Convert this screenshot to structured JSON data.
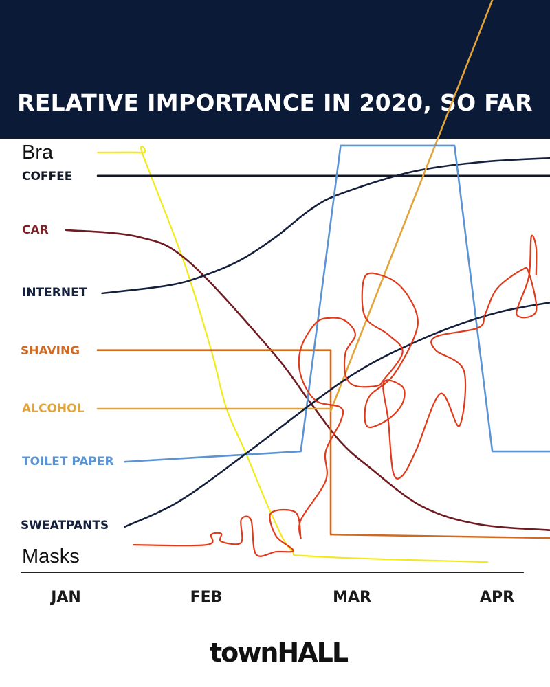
{
  "chart_data": {
    "type": "line",
    "title": "RELATIVE IMPORTANCE IN 2020, SO FAR",
    "xlabel": "",
    "ylabel": "",
    "x_ticks": [
      "JAN",
      "FEB",
      "MAR",
      "APR"
    ],
    "x_tick_dates": [
      "2020-01-01",
      "2020-02-01",
      "2020-03-01",
      "2020-04-01"
    ],
    "ylim": [
      0,
      100
    ],
    "grid": false,
    "legend": "inline labels at left",
    "series": [
      {
        "name": "Bra",
        "color": "#f2ea1a",
        "interp": "curve",
        "points": [
          [
            "2020-01-08",
            97.3
          ],
          [
            "2020-01-18",
            97.3
          ],
          [
            "2020-01-18",
            96.7
          ],
          [
            "2020-01-27",
            72.1
          ],
          [
            "2020-02-02",
            51.4
          ],
          [
            "2020-02-05",
            38.1
          ],
          [
            "2020-02-09",
            27.4
          ],
          [
            "2020-02-14",
            13.6
          ],
          [
            "2020-02-18",
            5.1
          ],
          [
            "2020-02-23",
            3.5
          ],
          [
            "2020-03-30",
            2.2
          ]
        ]
      },
      {
        "name": "COFFEE",
        "color": "#111827",
        "interp": "linear",
        "points": [
          [
            "2020-01-08",
            91.9
          ],
          [
            "2020-04-12",
            91.9
          ]
        ]
      },
      {
        "name": "CAR",
        "color": "#6e1c22",
        "interp": "curve",
        "points": [
          [
            "2020-01-01",
            79.3
          ],
          [
            "2020-01-17",
            77.7
          ],
          [
            "2020-01-28",
            72.1
          ],
          [
            "2020-02-14",
            51.4
          ],
          [
            "2020-02-22",
            39.1
          ],
          [
            "2020-02-28",
            30.1
          ],
          [
            "2020-03-05",
            24.2
          ],
          [
            "2020-03-16",
            15.2
          ],
          [
            "2020-03-28",
            11.0
          ],
          [
            "2020-04-12",
            9.6
          ]
        ]
      },
      {
        "name": "INTERNET",
        "color": "#14203c",
        "interp": "curve",
        "points": [
          [
            "2020-01-09",
            64.6
          ],
          [
            "2020-01-24",
            66.5
          ],
          [
            "2020-02-01",
            68.9
          ],
          [
            "2020-02-08",
            72.4
          ],
          [
            "2020-02-15",
            77.7
          ],
          [
            "2020-02-22",
            84.1
          ],
          [
            "2020-02-28",
            87.7
          ],
          [
            "2020-03-14",
            92.8
          ],
          [
            "2020-03-29",
            95.1
          ],
          [
            "2020-04-12",
            96.0
          ]
        ]
      },
      {
        "name": "SHAVING",
        "color": "#cf6a22",
        "interp": "linear",
        "points": [
          [
            "2020-01-08",
            51.4
          ],
          [
            "2020-02-26",
            51.4
          ],
          [
            "2020-02-26",
            8.6
          ],
          [
            "2020-04-12",
            7.8
          ]
        ]
      },
      {
        "name": "ALCOHOL",
        "color": "#e2a43a",
        "interp": "linear",
        "points": [
          [
            "2020-01-08",
            37.8
          ],
          [
            "2020-02-26",
            37.8
          ],
          [
            "2020-02-26",
            37.3
          ],
          [
            "2020-03-31",
            132.7
          ]
        ]
      },
      {
        "name": "TOILET PAPER",
        "color": "#5b93d3",
        "interp": "linear",
        "points": [
          [
            "2020-01-14",
            25.5
          ],
          [
            "2020-02-20",
            27.9
          ],
          [
            "2020-02-28",
            98.9
          ],
          [
            "2020-03-23",
            98.9
          ],
          [
            "2020-03-31",
            27.9
          ],
          [
            "2020-04-12",
            27.9
          ]
        ]
      },
      {
        "name": "SWEATPANTS",
        "color": "#14203c",
        "interp": "curve",
        "points": [
          [
            "2020-01-14",
            10.4
          ],
          [
            "2020-01-26",
            16.3
          ],
          [
            "2020-02-09",
            27.4
          ],
          [
            "2020-02-23",
            39.7
          ],
          [
            "2020-03-02",
            46.1
          ],
          [
            "2020-03-10",
            50.9
          ],
          [
            "2020-03-22",
            56.6
          ],
          [
            "2020-04-02",
            60.4
          ],
          [
            "2020-04-12",
            62.5
          ]
        ]
      },
      {
        "name": "Masks",
        "color": "#e03a1a",
        "interp": "curve",
        "points": [
          [
            "2020-01-16",
            6.2
          ],
          [
            "2020-02-01",
            6.2
          ],
          [
            "2020-02-02",
            8.6
          ],
          [
            "2020-02-04",
            8.8
          ],
          [
            "2020-02-04",
            7.0
          ],
          [
            "2020-02-08",
            6.7
          ],
          [
            "2020-02-08",
            12.0
          ],
          [
            "2020-02-10",
            12.0
          ],
          [
            "2020-02-11",
            4.0
          ],
          [
            "2020-02-15",
            4.6
          ],
          [
            "2020-02-18T12:00",
            4.9
          ],
          [
            "2020-02-15",
            8.3
          ],
          [
            "2020-02-14",
            13.6
          ],
          [
            "2020-02-19",
            13.7
          ],
          [
            "2020-02-20",
            7.8
          ],
          [
            "2020-02-20",
            12.0
          ],
          [
            "2020-02-25",
            21.1
          ],
          [
            "2020-02-25",
            27.9
          ],
          [
            "2020-02-28",
            34.9
          ],
          [
            "2020-02-28",
            38.1
          ],
          [
            "2020-02-23",
            39.7
          ],
          [
            "2020-02-20",
            45.5
          ],
          [
            "2020-02-20",
            51.8
          ],
          [
            "2020-02-23",
            57.7
          ],
          [
            "2020-02-26",
            58.9
          ],
          [
            "2020-02-29",
            58.2
          ],
          [
            "2020-03-02",
            55.0
          ],
          [
            "2020-02-29",
            50.9
          ],
          [
            "2020-02-29",
            45.5
          ],
          [
            "2020-03-02",
            43.1
          ],
          [
            "2020-03-06T12:00",
            43.1
          ],
          [
            "2020-03-08",
            44.5
          ],
          [
            "2020-03-12",
            50.9
          ],
          [
            "2020-03-09",
            55.0
          ],
          [
            "2020-03-04",
            59.3
          ],
          [
            "2020-03-04",
            68.4
          ],
          [
            "2020-03-08",
            68.6
          ],
          [
            "2020-03-12",
            65.7
          ],
          [
            "2020-03-15",
            59.8
          ],
          [
            "2020-03-14T12:00",
            54.5
          ],
          [
            "2020-03-10",
            45.5
          ],
          [
            "2020-03-05",
            40.7
          ],
          [
            "2020-03-04",
            35.9
          ],
          [
            "2020-03-05",
            33.5
          ],
          [
            "2020-03-09",
            35.4
          ],
          [
            "2020-03-12",
            39.1
          ],
          [
            "2020-03-12",
            42.9
          ],
          [
            "2020-03-08",
            43.9
          ],
          [
            "2020-03-09",
            34.9
          ],
          [
            "2020-03-10",
            23.1
          ],
          [
            "2020-03-12",
            22.3
          ],
          [
            "2020-03-15",
            28.5
          ],
          [
            "2020-03-20",
            41.3
          ],
          [
            "2020-03-24",
            33.8
          ],
          [
            "2020-03-25",
            46.6
          ],
          [
            "2020-03-19",
            51.4
          ],
          [
            "2020-03-19",
            54.5
          ],
          [
            "2020-03-28",
            56.6
          ],
          [
            "2020-03-29T12:00",
            59.8
          ],
          [
            "2020-04-01",
            65.7
          ],
          [
            "2020-04-06",
            70.0
          ],
          [
            "2020-04-07T12:00",
            69.4
          ],
          [
            "2020-04-09",
            60.4
          ],
          [
            "2020-04-05",
            59.8
          ],
          [
            "2020-04-07T12:00",
            68.4
          ],
          [
            "2020-04-08",
            77.7
          ],
          [
            "2020-04-09",
            75.3
          ],
          [
            "2020-04-09",
            68.9
          ]
        ]
      }
    ]
  },
  "labels": {
    "bra": "Bra",
    "coffee": "COFFEE",
    "car": "CAR",
    "internet": "INTERNET",
    "shaving": "SHAVING",
    "alcohol": "ALCOHOL",
    "toilet_paper": "TOILET PAPER",
    "sweatpants": "SWEATPANTS",
    "masks": "Masks"
  },
  "colors": {
    "header_bg": "#0b1a36"
  },
  "logo": "townHALL"
}
